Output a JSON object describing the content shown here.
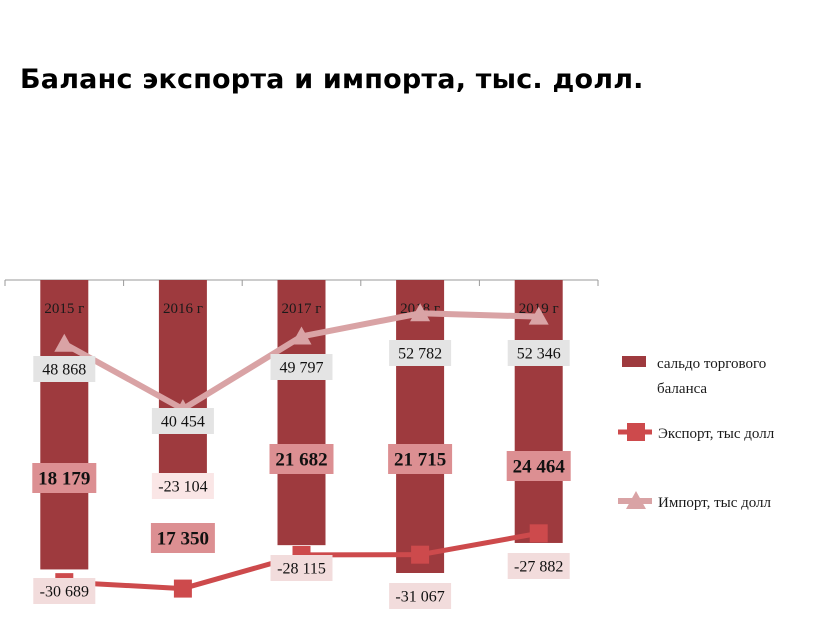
{
  "title": "Баланс экспорта и импорта, тыс. долл.",
  "chart_data": {
    "type": "bar",
    "categories": [
      "2015 г",
      "2016 г",
      "2017 г",
      "2018 г",
      "2019 г"
    ],
    "series": [
      {
        "name": "сальдо торгового баланса",
        "type": "bar",
        "values": [
          -30689,
          -23104,
          -28115,
          -31067,
          -27882
        ],
        "labels": [
          "-30 689",
          "-23 104",
          "-28 115",
          "-31 067",
          "-27 882"
        ],
        "color": "#9e3a3e"
      },
      {
        "name": "Экспорт,  тыс долл",
        "type": "line",
        "marker": "square",
        "values": [
          18179,
          17350,
          21682,
          21715,
          24464
        ],
        "labels": [
          "18 179",
          "17 350",
          "21 682",
          "21 715",
          "24 464"
        ],
        "color": "#cd4a4c",
        "label_bg": "#dc8f92"
      },
      {
        "name": "Импорт,  тыс долл",
        "type": "line",
        "marker": "triangle",
        "values": [
          48868,
          40454,
          49797,
          52782,
          52346
        ],
        "labels": [
          "48 868",
          "40 454",
          "49 797",
          "52 782",
          "52 346"
        ],
        "color": "#d9a3a5",
        "label_bg": "#e4e4e4"
      }
    ],
    "legend_position": "right",
    "grid": false
  }
}
